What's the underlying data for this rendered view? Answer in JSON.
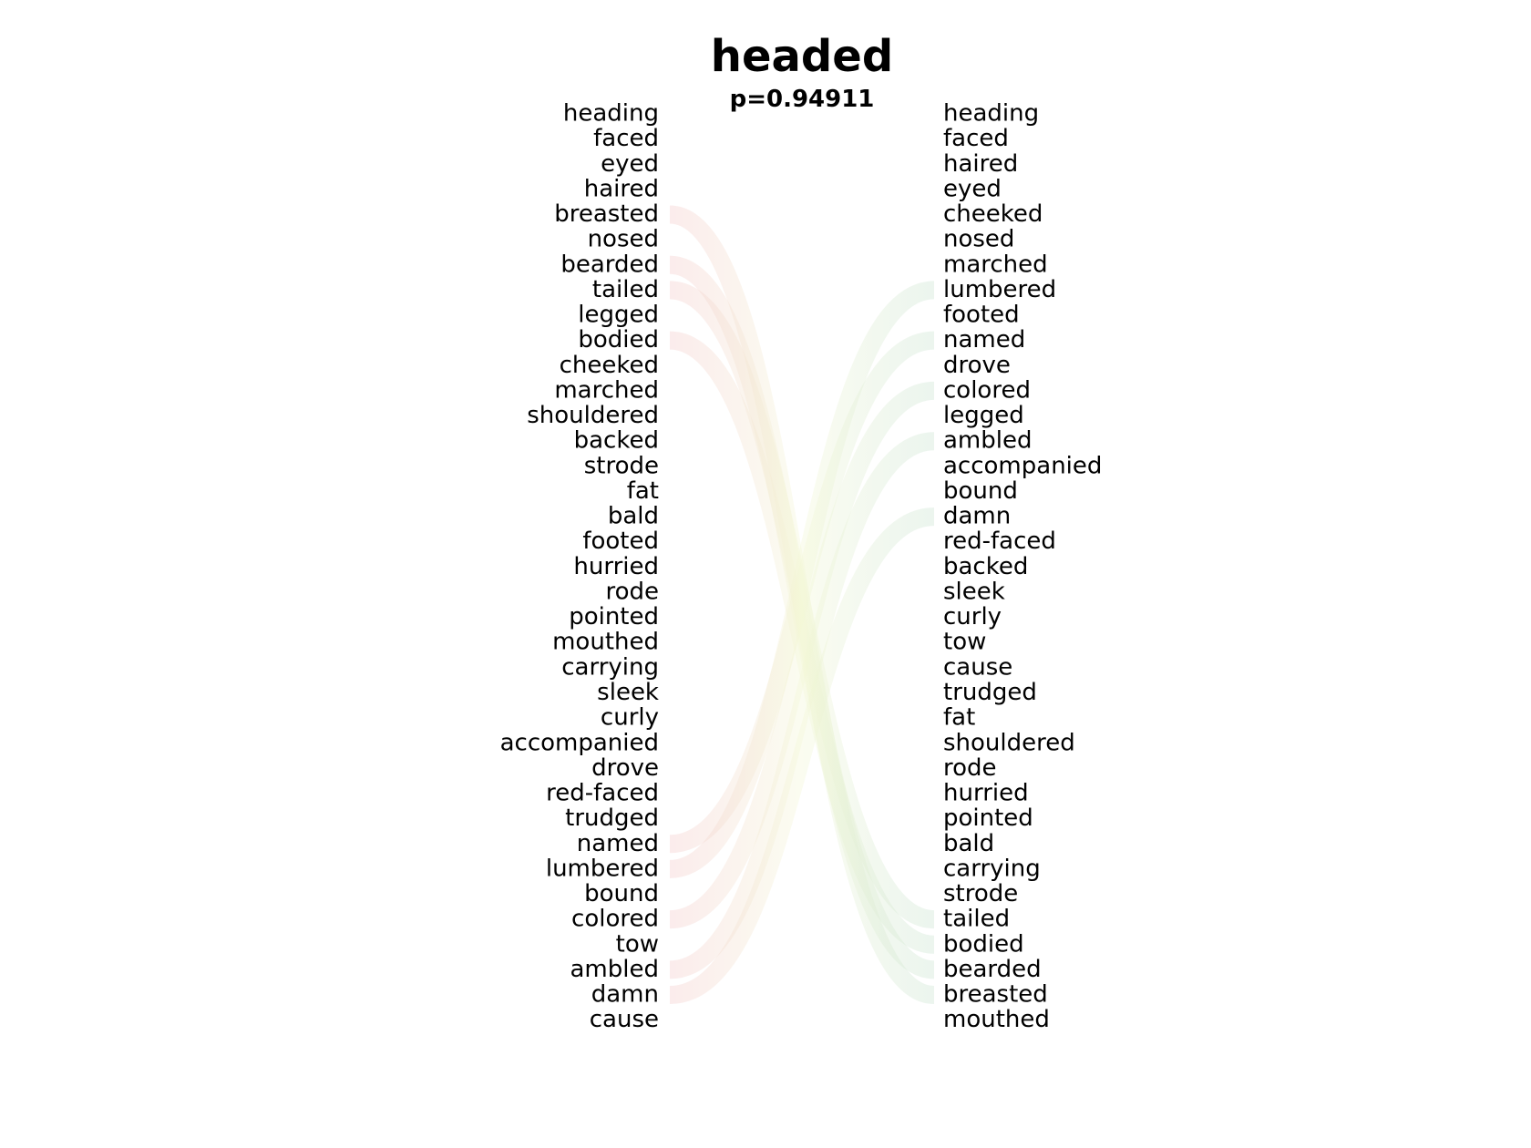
{
  "chart_data": {
    "type": "slope",
    "title": "headed",
    "subtitle": "p=0.94911",
    "left_list": [
      "heading",
      "faced",
      "eyed",
      "haired",
      "breasted",
      "nosed",
      "bearded",
      "tailed",
      "legged",
      "bodied",
      "cheeked",
      "marched",
      "shouldered",
      "backed",
      "strode",
      "fat",
      "bald",
      "footed",
      "hurried",
      "rode",
      "pointed",
      "mouthed",
      "carrying",
      "sleek",
      "curly",
      "accompanied",
      "drove",
      "red-faced",
      "trudged",
      "named",
      "lumbered",
      "bound",
      "colored",
      "tow",
      "ambled",
      "damn",
      "cause"
    ],
    "right_list": [
      "heading",
      "faced",
      "haired",
      "eyed",
      "cheeked",
      "nosed",
      "marched",
      "lumbered",
      "footed",
      "named",
      "drove",
      "colored",
      "legged",
      "ambled",
      "accompanied",
      "bound",
      "damn",
      "red-faced",
      "backed",
      "sleek",
      "curly",
      "tow",
      "cause",
      "trudged",
      "fat",
      "shouldered",
      "rode",
      "hurried",
      "pointed",
      "bald",
      "carrying",
      "strode",
      "tailed",
      "bodied",
      "bearded",
      "breasted",
      "mouthed"
    ],
    "highlighted_left": [
      "breasted",
      "bearded",
      "tailed",
      "bodied",
      "named",
      "lumbered",
      "colored",
      "ambled",
      "damn"
    ],
    "highlighted_right": [
      "lumbered",
      "named",
      "colored",
      "ambled",
      "damn",
      "tailed",
      "bodied",
      "bearded",
      "breasted"
    ],
    "colors": {
      "left_band": "#f3c8c8",
      "right_band": "#c7e2cf",
      "mid": "#f3f7d5",
      "text": "#000000"
    },
    "grid": false,
    "legend": "none"
  }
}
